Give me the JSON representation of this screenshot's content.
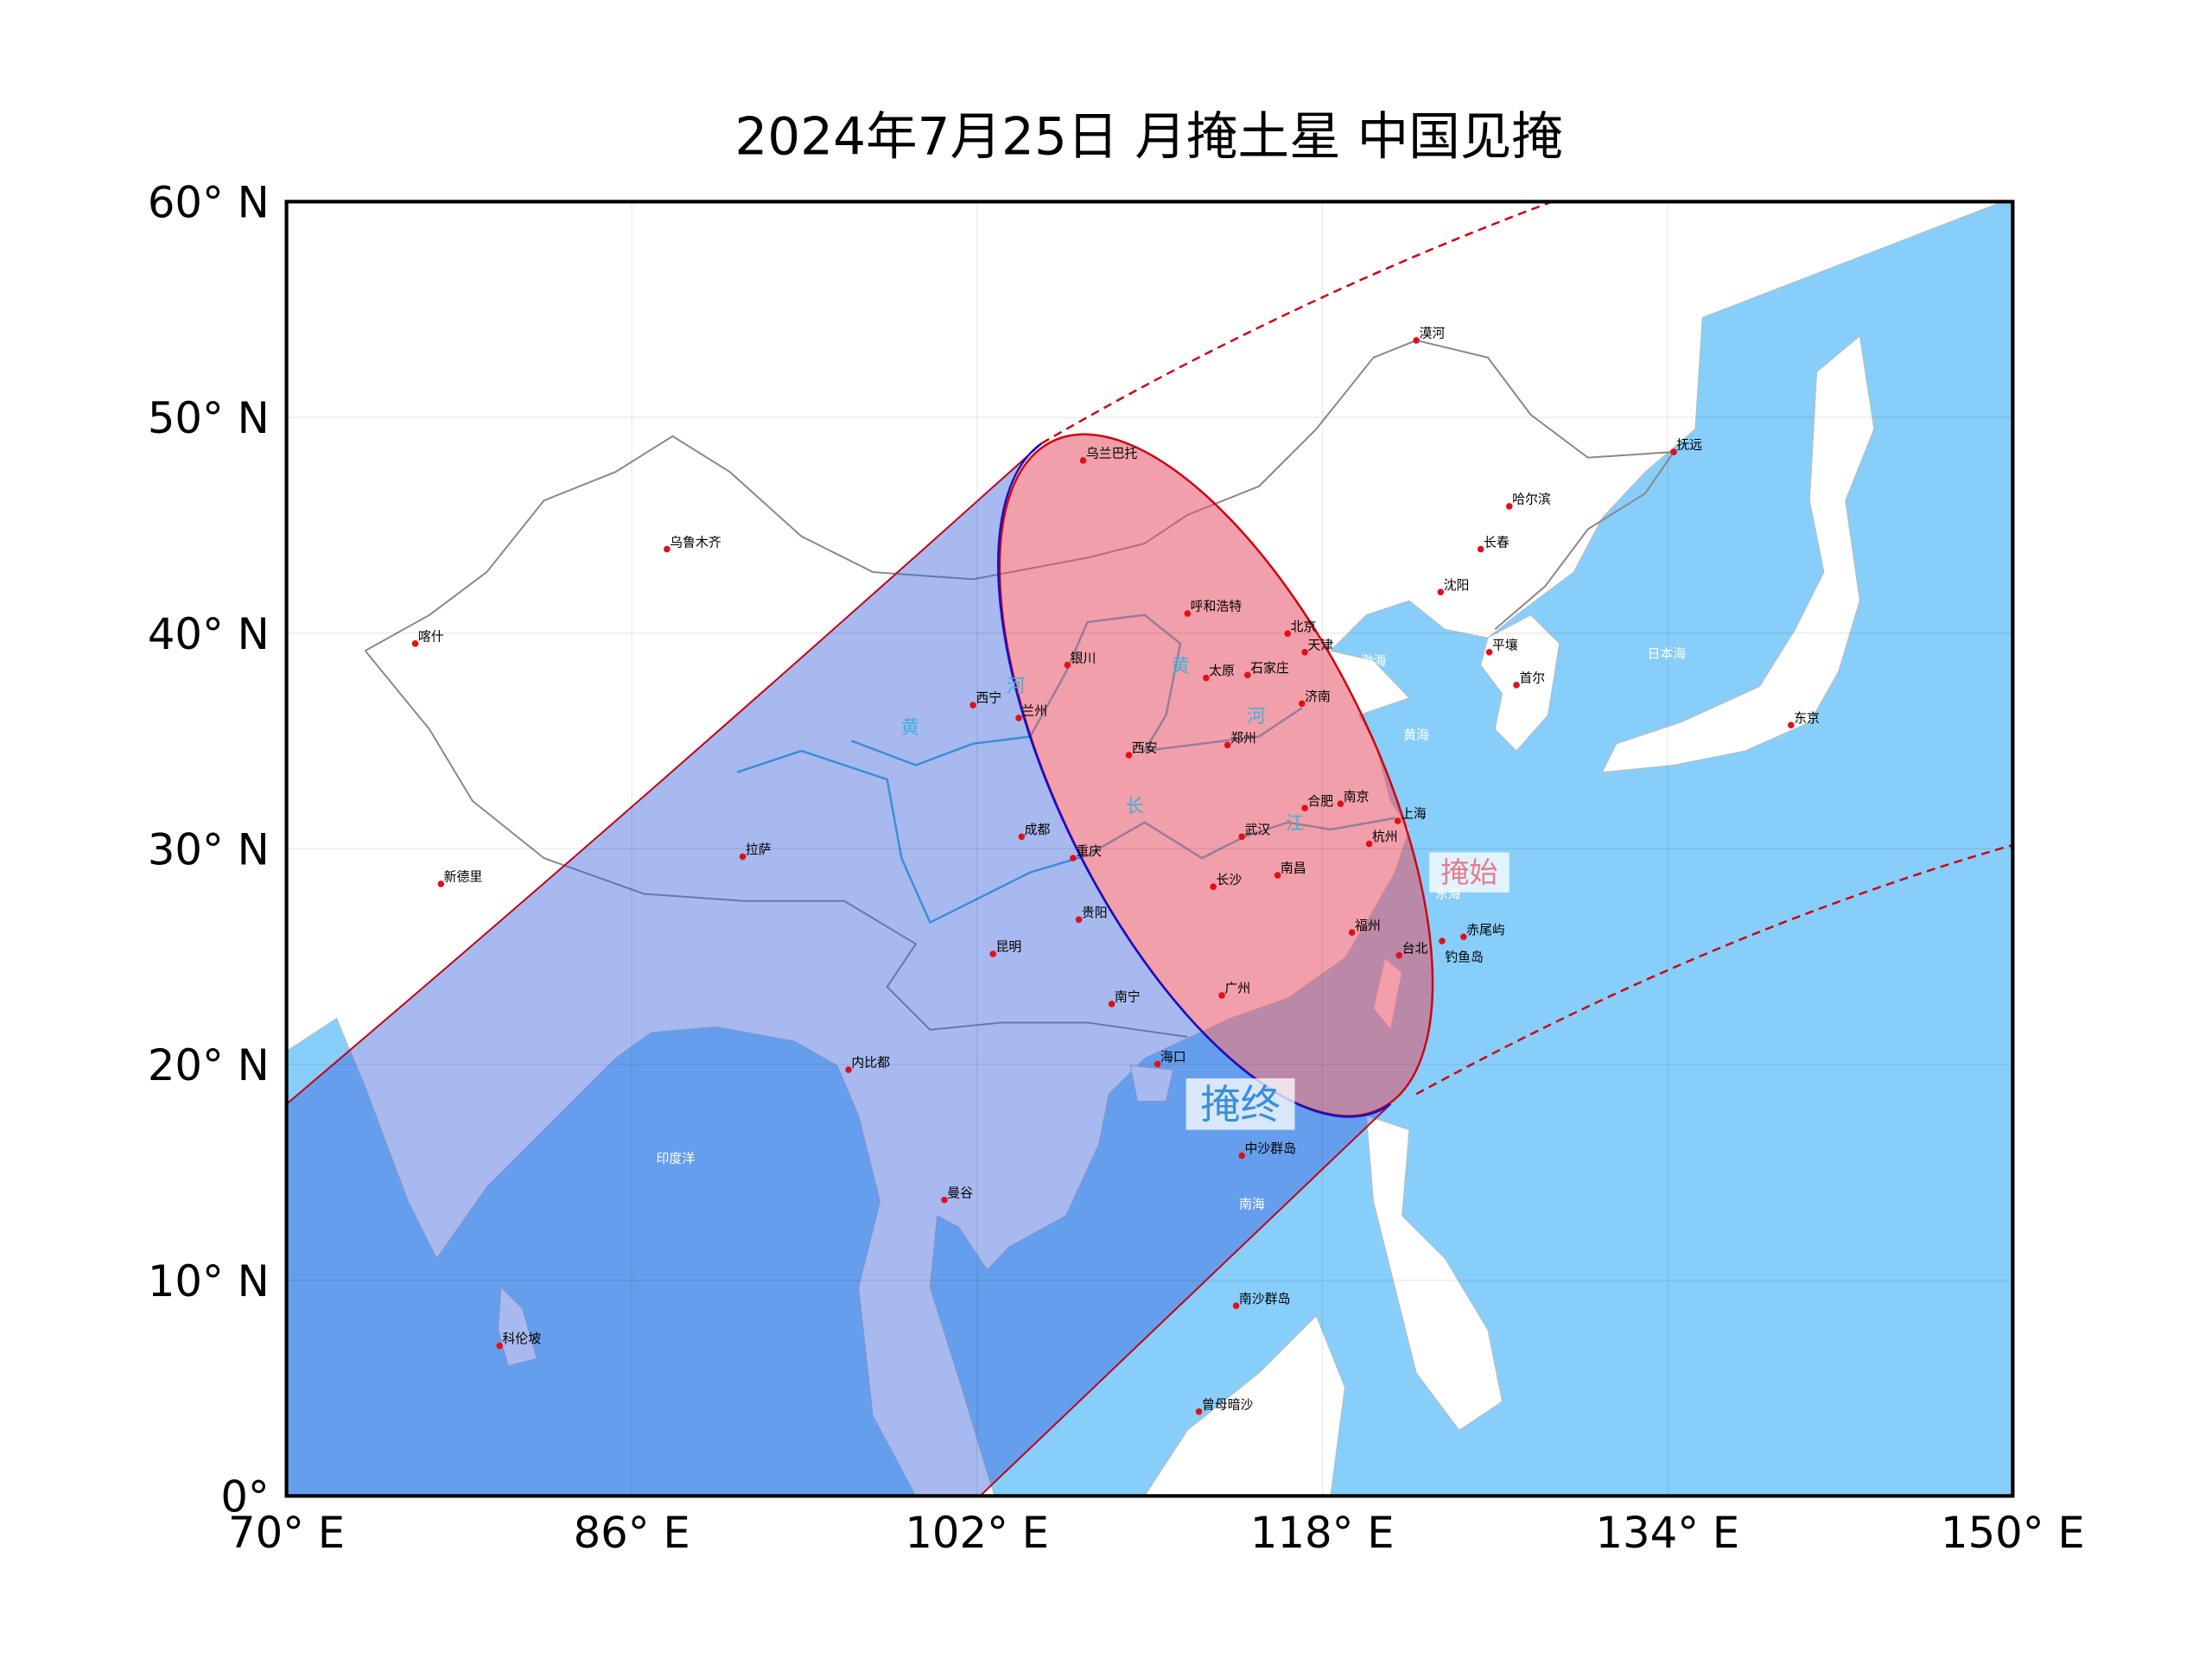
{
  "title": "2024年7月25日 月掩土星 中国见掩",
  "map": {
    "xlim": [
      70,
      150
    ],
    "ylim": [
      0,
      60
    ],
    "xticks": [
      {
        "value": 70,
        "label": "70° E"
      },
      {
        "value": 86,
        "label": "86° E"
      },
      {
        "value": 102,
        "label": "102° E"
      },
      {
        "value": 118,
        "label": "118° E"
      },
      {
        "value": 134,
        "label": "134° E"
      },
      {
        "value": 150,
        "label": "150° E"
      }
    ],
    "yticks": [
      {
        "value": 0,
        "label": "0°"
      },
      {
        "value": 10,
        "label": "10° N"
      },
      {
        "value": 20,
        "label": "20° N"
      },
      {
        "value": 30,
        "label": "30° N"
      },
      {
        "value": 40,
        "label": "40° N"
      },
      {
        "value": 50,
        "label": "50° N"
      },
      {
        "value": 60,
        "label": "60° N"
      }
    ]
  },
  "annotations": {
    "start": "掩始",
    "end": "掩终"
  },
  "cities": [
    "漠河",
    "乌兰巴托",
    "抚远",
    "哈尔滨",
    "长春",
    "乌鲁木齐",
    "沈阳",
    "呼和浩特",
    "北京",
    "天津",
    "喀什",
    "银川",
    "平壤",
    "太原",
    "石家庄",
    "首尔",
    "济南",
    "西宁",
    "兰州",
    "东京",
    "西安",
    "郑州",
    "合肥",
    "南京",
    "上海",
    "成都",
    "武汉",
    "杭州",
    "重庆",
    "拉萨",
    "新德里",
    "长沙",
    "南昌",
    "贵阳",
    "福州",
    "赤尾屿",
    "钓鱼岛",
    "台北",
    "昆明",
    "广州",
    "南宁",
    "海口",
    "内比都",
    "中沙群岛",
    "曼谷",
    "南沙群岛",
    "科伦坡",
    "曾母暗沙"
  ],
  "seas": [
    "渤海",
    "黄海",
    "日本海",
    "东海",
    "印度洋",
    "南海"
  ],
  "rivers": [
    "黄",
    "河",
    "长",
    "江",
    "黄",
    "河"
  ]
}
